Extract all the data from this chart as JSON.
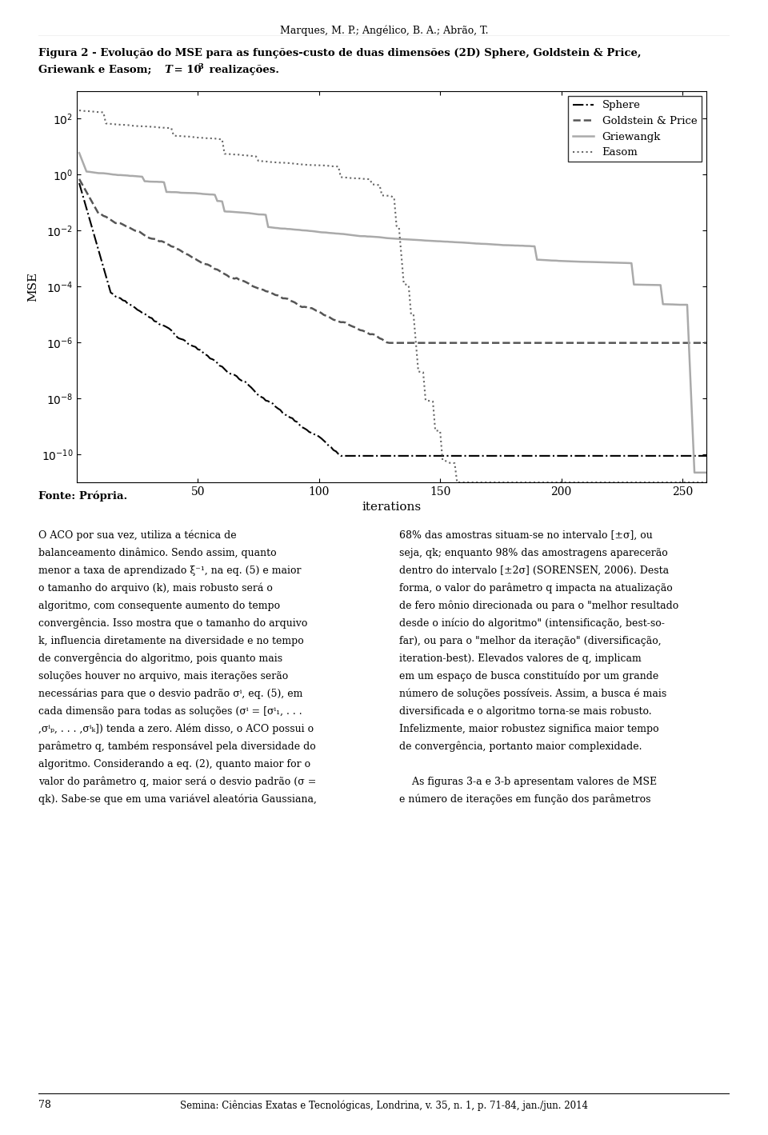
{
  "title_header": "Marques, M. P.; Angélico, B. A.; Abrão, T.",
  "xlabel": "iterations",
  "ylabel": "MSE",
  "legend_entries": [
    "Sphere",
    "Goldstein & Price",
    "Griewangk",
    "Easom"
  ],
  "xlim": [
    0,
    260
  ],
  "xticks": [
    50,
    100,
    150,
    200,
    250
  ],
  "ytick_exponents": [
    2,
    0,
    -2,
    -4,
    -6,
    -8,
    -10
  ],
  "colors": {
    "sphere": "#000000",
    "goldstein": "#555555",
    "griewank": "#aaaaaa",
    "easom": "#666666"
  }
}
